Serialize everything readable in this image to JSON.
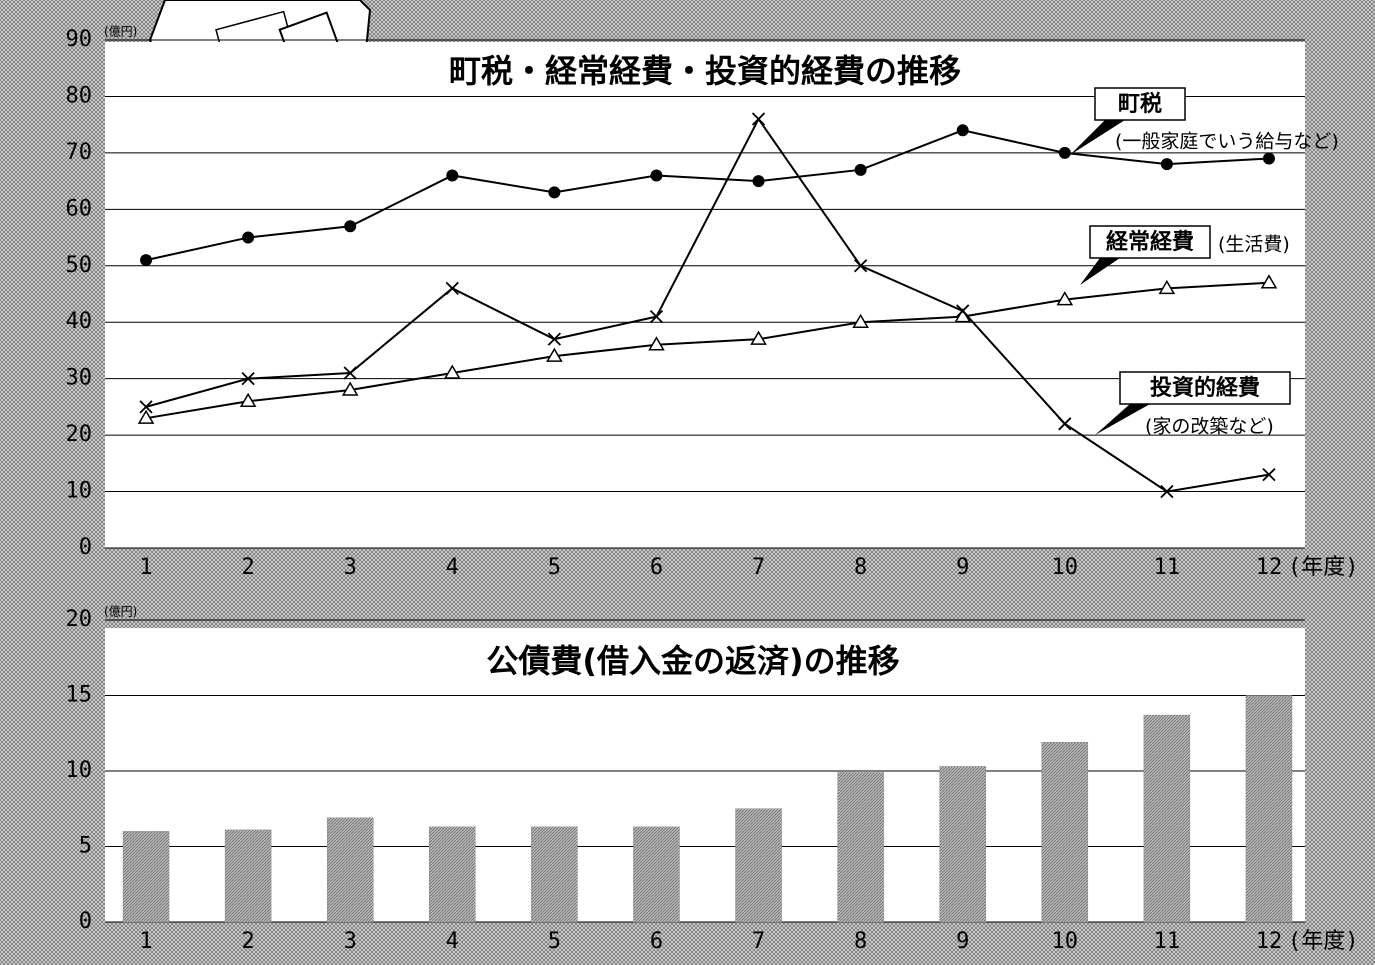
{
  "chart_data": [
    {
      "type": "line",
      "title": "町税・経常経費・投資的経費の推移",
      "y_unit": "(億円)",
      "x_label": "(年度)",
      "categories": [
        "1",
        "2",
        "3",
        "4",
        "5",
        "6",
        "7",
        "8",
        "9",
        "10",
        "11",
        "12"
      ],
      "ylim": [
        0,
        90
      ],
      "yticks": [
        0,
        10,
        20,
        30,
        40,
        50,
        60,
        70,
        80,
        90
      ],
      "grid": true,
      "series": [
        {
          "name": "町税",
          "note": "(一般家庭でいう給与など)",
          "color": "#000000",
          "marker": "circle",
          "values": [
            51,
            55,
            57,
            66,
            63,
            66,
            65,
            67,
            74,
            70,
            68,
            69
          ]
        },
        {
          "name": "経常経費",
          "note": "(生活費)",
          "color": "#000000",
          "marker": "triangle",
          "values": [
            23,
            26,
            28,
            31,
            34,
            36,
            37,
            40,
            41,
            44,
            46,
            47
          ]
        },
        {
          "name": "投資的経費",
          "note": "(家の改築など)",
          "color": "#000000",
          "marker": "cross",
          "values": [
            25,
            30,
            31,
            46,
            37,
            41,
            76,
            50,
            42,
            22,
            10,
            13
          ]
        }
      ]
    },
    {
      "type": "bar",
      "title": "公債費(借入金の返済)の推移",
      "y_unit": "(億円)",
      "x_label": "(年度)",
      "categories": [
        "1",
        "2",
        "3",
        "4",
        "5",
        "6",
        "7",
        "8",
        "9",
        "10",
        "11",
        "12"
      ],
      "ylim": [
        0,
        20
      ],
      "yticks": [
        0,
        5,
        10,
        15,
        20
      ],
      "grid": true,
      "color": "#8a8a8a",
      "values": [
        6.0,
        6.1,
        6.9,
        6.3,
        6.3,
        6.3,
        7.5,
        9.9,
        10.3,
        11.9,
        13.7,
        15.0
      ]
    }
  ]
}
